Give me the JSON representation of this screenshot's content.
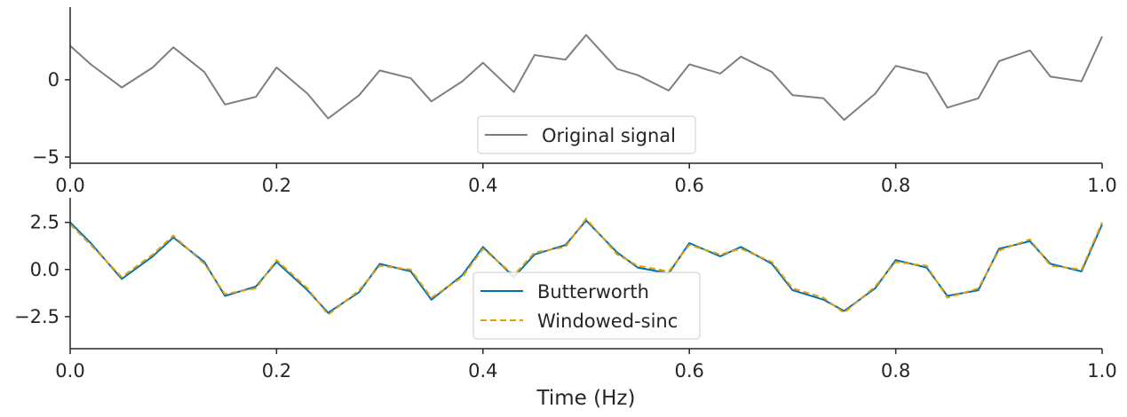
{
  "chart_data": [
    {
      "type": "line",
      "xlim": [
        0.0,
        1.0
      ],
      "ylim": [
        -5.4,
        4.7
      ],
      "xticks": [
        "0.0",
        "0.2",
        "0.4",
        "0.6",
        "0.8",
        "1.0"
      ],
      "yticks": [
        {
          "value": 0,
          "label": "0"
        },
        {
          "value": -5,
          "label": "−5"
        }
      ],
      "xlabel": "",
      "ylabel": "",
      "grid": false,
      "legend_position": "bottom-center",
      "series": [
        {
          "name": "Original signal",
          "color": "#7f7f7f",
          "dash": "solid",
          "x": [
            0.0,
            0.02,
            0.05,
            0.08,
            0.1,
            0.13,
            0.15,
            0.18,
            0.2,
            0.23,
            0.25,
            0.28,
            0.3,
            0.33,
            0.35,
            0.38,
            0.4,
            0.43,
            0.45,
            0.48,
            0.5,
            0.53,
            0.55,
            0.58,
            0.6,
            0.63,
            0.65,
            0.68,
            0.7,
            0.73,
            0.75,
            0.78,
            0.8,
            0.83,
            0.85,
            0.88,
            0.9,
            0.93,
            0.95,
            0.98,
            1.0
          ],
          "y": [
            2.2,
            1.0,
            -0.5,
            0.8,
            2.1,
            0.5,
            -1.6,
            -1.1,
            0.8,
            -0.9,
            -2.5,
            -1.0,
            0.6,
            0.1,
            -1.4,
            -0.1,
            1.1,
            -0.8,
            1.6,
            1.3,
            2.9,
            0.7,
            0.3,
            -0.7,
            1.0,
            0.4,
            1.5,
            0.5,
            -1.0,
            -1.2,
            -2.6,
            -0.9,
            0.9,
            0.4,
            -1.8,
            -1.2,
            1.2,
            1.9,
            0.2,
            -0.1,
            2.8
          ]
        }
      ]
    },
    {
      "type": "line",
      "xlim": [
        0.0,
        1.0
      ],
      "ylim": [
        -4.2,
        3.8
      ],
      "xticks": [
        "0.0",
        "0.2",
        "0.4",
        "0.6",
        "0.8",
        "1.0"
      ],
      "yticks": [
        {
          "value": 2.5,
          "label": "2.5"
        },
        {
          "value": 0,
          "label": "0.0"
        },
        {
          "value": -2.5,
          "label": "−2.5"
        }
      ],
      "xlabel": "Time (Hz)",
      "ylabel": "",
      "grid": false,
      "legend_position": "bottom-center",
      "series": [
        {
          "name": "Butterworth",
          "color": "#0072b2",
          "dash": "solid",
          "x": [
            0.0,
            0.02,
            0.05,
            0.08,
            0.1,
            0.13,
            0.15,
            0.18,
            0.2,
            0.23,
            0.25,
            0.28,
            0.3,
            0.33,
            0.35,
            0.38,
            0.4,
            0.43,
            0.45,
            0.48,
            0.5,
            0.53,
            0.55,
            0.58,
            0.6,
            0.63,
            0.65,
            0.68,
            0.7,
            0.73,
            0.75,
            0.78,
            0.8,
            0.83,
            0.85,
            0.88,
            0.9,
            0.93,
            0.95,
            0.98,
            1.0
          ],
          "y": [
            2.5,
            1.4,
            -0.5,
            0.7,
            1.7,
            0.4,
            -1.4,
            -0.9,
            0.4,
            -1.1,
            -2.3,
            -1.2,
            0.3,
            -0.1,
            -1.6,
            -0.3,
            1.2,
            -0.4,
            0.8,
            1.3,
            2.6,
            0.9,
            0.1,
            -0.2,
            1.4,
            0.7,
            1.2,
            0.3,
            -1.1,
            -1.6,
            -2.2,
            -1.0,
            0.5,
            0.1,
            -1.4,
            -1.1,
            1.1,
            1.5,
            0.3,
            -0.1,
            2.4
          ]
        },
        {
          "name": "Windowed-sinc",
          "color": "#e69f00",
          "dash": "dashed",
          "x": [
            0.0,
            0.02,
            0.05,
            0.08,
            0.1,
            0.13,
            0.15,
            0.18,
            0.2,
            0.23,
            0.25,
            0.28,
            0.3,
            0.33,
            0.35,
            0.38,
            0.4,
            0.43,
            0.45,
            0.48,
            0.5,
            0.53,
            0.55,
            0.58,
            0.6,
            0.63,
            0.65,
            0.68,
            0.7,
            0.73,
            0.75,
            0.78,
            0.8,
            0.83,
            0.85,
            0.88,
            0.9,
            0.93,
            0.95,
            0.98,
            1.0
          ],
          "y": [
            2.4,
            1.3,
            -0.4,
            0.8,
            1.8,
            0.3,
            -1.3,
            -1.0,
            0.5,
            -1.0,
            -2.4,
            -1.1,
            0.2,
            0.0,
            -1.5,
            -0.4,
            1.1,
            -0.3,
            0.9,
            1.2,
            2.7,
            0.8,
            0.2,
            -0.1,
            1.3,
            0.8,
            1.1,
            0.4,
            -1.0,
            -1.5,
            -2.3,
            -0.9,
            0.4,
            0.2,
            -1.5,
            -1.0,
            1.0,
            1.6,
            0.2,
            0.0,
            2.5
          ]
        }
      ]
    }
  ]
}
